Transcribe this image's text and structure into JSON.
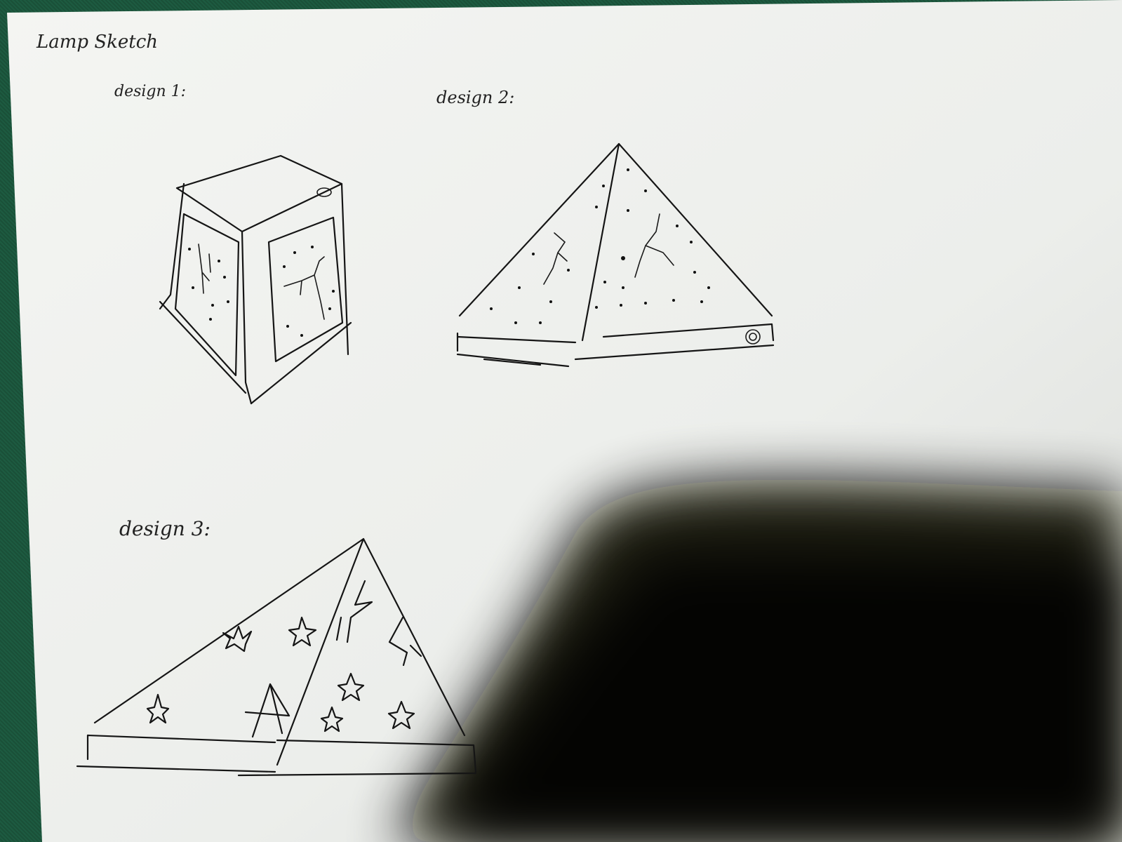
{
  "sheet": {
    "title": "Lamp Sketch",
    "designs": [
      {
        "label": "design 1:"
      },
      {
        "label": "design 2:"
      },
      {
        "label": "design 3:"
      }
    ]
  }
}
